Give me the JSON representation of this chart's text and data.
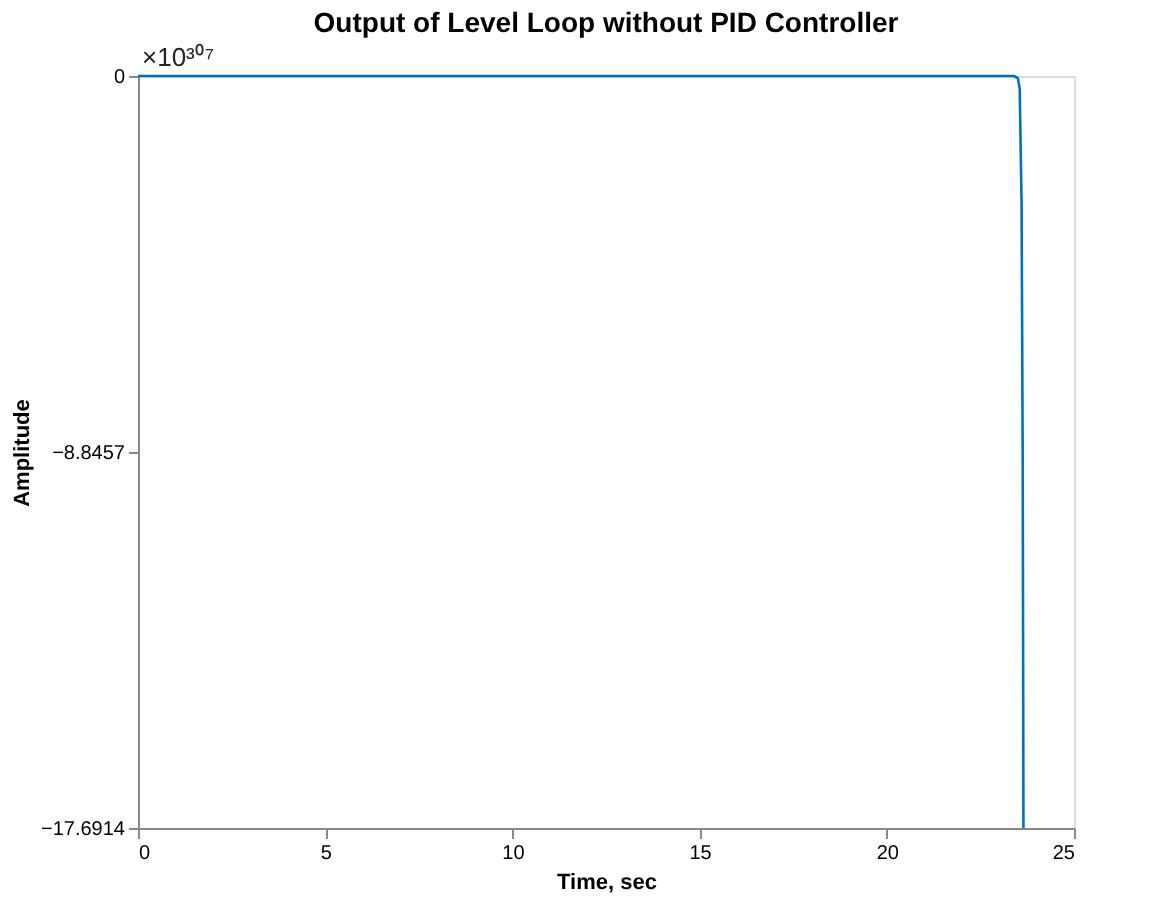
{
  "chart_data": {
    "type": "line",
    "title": "Output of Level Loop without PID Controller",
    "xlabel": "Time, sec",
    "ylabel": "Amplitude",
    "annotations": [
      "×10³⁰⁷"
    ],
    "x": [
      0,
      23.4,
      23.5,
      23.55,
      23.6,
      23.63,
      23.65
    ],
    "series": [
      {
        "color": "#0072bd",
        "values": [
          0,
          0,
          -0.05,
          -0.3,
          -3,
          -9,
          -17.69
        ]
      }
    ],
    "xlim": [
      0,
      25
    ],
    "xticks": [
      0,
      5,
      10,
      15,
      20,
      25
    ],
    "ylim": [
      -17.6914,
      0
    ],
    "yticks": [
      -17.6914,
      -8.8457,
      0
    ],
    "grid": false,
    "marker": "none",
    "line_style": "solid"
  }
}
